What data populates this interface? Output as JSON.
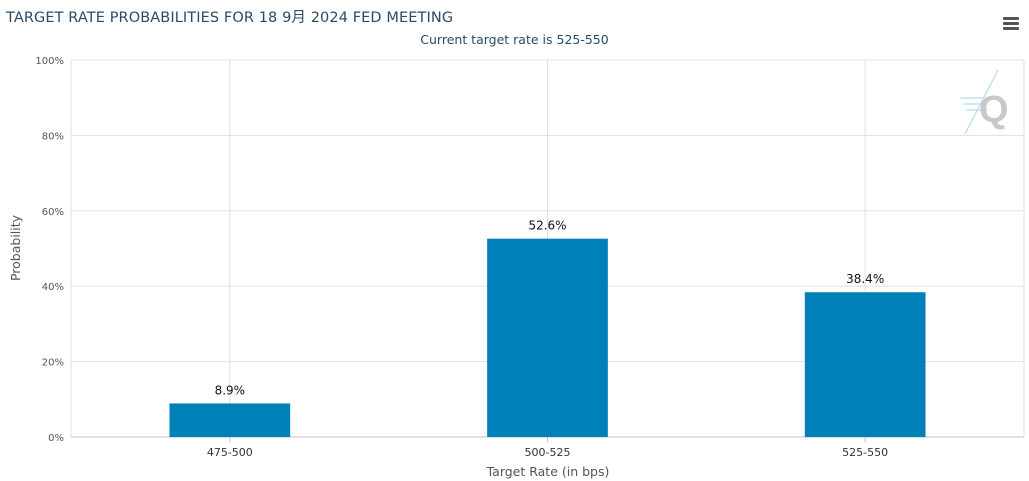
{
  "title": "TARGET RATE PROBABILITIES FOR 18 9月 2024 FED MEETING",
  "subtitle": "Current target rate is 525-550",
  "icons": {
    "menu": "hamburger-menu-icon",
    "watermark": "q-logo-icon"
  },
  "colors": {
    "bar": "#0080b8",
    "grid": "#e0e0e0",
    "title": "#274b6d"
  },
  "chart_data": {
    "type": "bar",
    "categories": [
      "475-500",
      "500-525",
      "525-550"
    ],
    "values": [
      8.9,
      52.6,
      38.4
    ],
    "data_labels": [
      "8.9%",
      "52.6%",
      "38.4%"
    ],
    "xlabel": "Target Rate (in bps)",
    "ylabel": "Probability",
    "ylim": [
      0,
      100
    ],
    "yticks": [
      "0%",
      "20%",
      "40%",
      "60%",
      "80%",
      "100%"
    ],
    "grid": true
  }
}
